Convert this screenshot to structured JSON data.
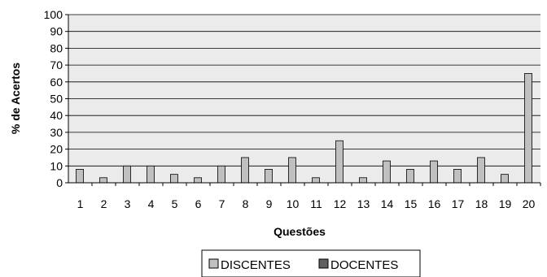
{
  "chart_data": {
    "type": "bar",
    "xlabel": "Questões",
    "ylabel": "% de Acertos",
    "ylim": [
      0,
      100
    ],
    "yticks": [
      0,
      10,
      20,
      30,
      40,
      50,
      60,
      70,
      80,
      90,
      100
    ],
    "grid": true,
    "legend_position": "bottom",
    "categories": [
      "1",
      "2",
      "3",
      "4",
      "5",
      "6",
      "7",
      "8",
      "9",
      "10",
      "11",
      "12",
      "13",
      "14",
      "15",
      "16",
      "17",
      "18",
      "19",
      "20"
    ],
    "series": [
      {
        "name": "DISCENTES",
        "color": "#c0c0c0",
        "values": [
          8,
          3,
          10,
          10,
          5,
          3,
          10,
          15,
          8,
          15,
          3,
          25,
          3,
          13,
          8,
          13,
          8,
          15,
          5,
          65
        ]
      },
      {
        "name": "DOCENTES",
        "color": "#606060",
        "values": [
          0,
          0,
          0,
          0,
          0,
          0,
          0,
          0,
          0,
          0,
          0,
          0,
          0,
          0,
          0,
          0,
          0,
          0,
          0,
          0
        ]
      }
    ]
  }
}
